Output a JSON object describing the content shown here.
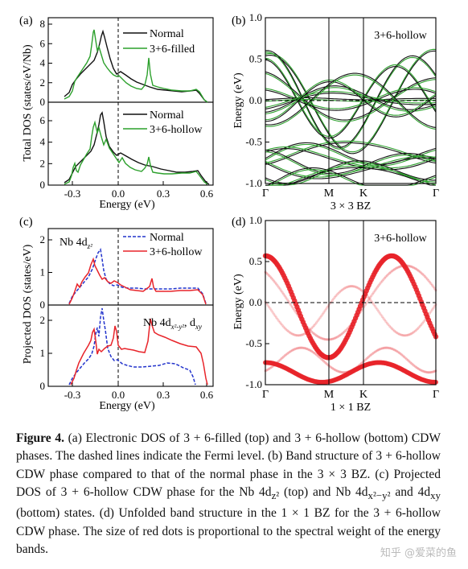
{
  "panels": {
    "a": {
      "label": "(a)",
      "ylabel": "Total DOS (states/eV/Nb)",
      "xlabel": "Energy (eV)",
      "yticks_top": [
        "0",
        "2",
        "4",
        "6",
        "8"
      ],
      "yticks_bot": [
        "0",
        "2",
        "4",
        "6"
      ],
      "xticks": [
        "-0.3",
        "0.0",
        "0.3",
        "0.6"
      ],
      "legend_top": [
        "Normal",
        "3+6-filled"
      ],
      "legend_bot": [
        "Normal",
        "3+6-hollow"
      ]
    },
    "b": {
      "label": "(b)",
      "ylabel": "Energy (eV)",
      "annotation": "3+6-hollow",
      "yticks": [
        "1.0",
        "0.5",
        "0.0",
        "-0.5",
        "-1.0"
      ],
      "kpoints": [
        "Γ",
        "M",
        "K",
        "Γ"
      ],
      "bz": "3 × 3  BZ"
    },
    "c": {
      "label": "(c)",
      "ylabel": "Projected DOS (states/eV)",
      "xlabel": "Energy (eV)",
      "yticks_top": [
        "0",
        "1",
        "2"
      ],
      "yticks_bot": [
        "0",
        "1",
        "2"
      ],
      "xticks": [
        "-0.3",
        "0.0",
        "0.3",
        "0.6"
      ],
      "legend": [
        "Normal",
        "3+6-hollow"
      ],
      "orbital_top": "Nb 4d",
      "orbital_top_sub": "z²",
      "orbital_bot": "Nb 4d",
      "orbital_bot_sub": "x²-y²",
      "orbital_bot_rest": ", d",
      "orbital_bot_rest_sub": "xy"
    },
    "d": {
      "label": "(d)",
      "ylabel": "Energy (eV)",
      "annotation": "3+6-hollow",
      "yticks": [
        "1.0",
        "0.5",
        "0.0",
        "-0.5",
        "-1.0"
      ],
      "kpoints": [
        "Γ",
        "M",
        "K",
        "Γ"
      ],
      "bz": "1 × 1  BZ"
    }
  },
  "colors": {
    "normal": "#111111",
    "green": "#2ca02c",
    "red": "#e8242a",
    "blue": "#2233cc"
  },
  "caption": {
    "bold": "Figure 4.",
    "text": " (a) Electronic DOS of 3 + 6-filled (top) and 3 + 6-hollow (bottom) CDW phases. The dashed lines indicate the Fermi level. (b) Band structure of 3 + 6-hollow CDW phase compared to that of the normal phase in the 3 × 3 BZ. (c) Projected DOS of 3 + 6-hollow CDW phase for the Nb 4d",
    "sub1": "z²",
    "text2": " (top) and Nb 4d",
    "sub2": "x²−y²",
    "text3": " and 4d",
    "sub3": "xy",
    "text4": " (bottom) states. (d) Unfolded band structure in the 1 × 1 BZ for the 3 + 6-hollow CDW phase. The size of red dots is proportional to the spectral weight of the energy bands."
  },
  "watermark": "知乎 @爱菜的鱼"
}
